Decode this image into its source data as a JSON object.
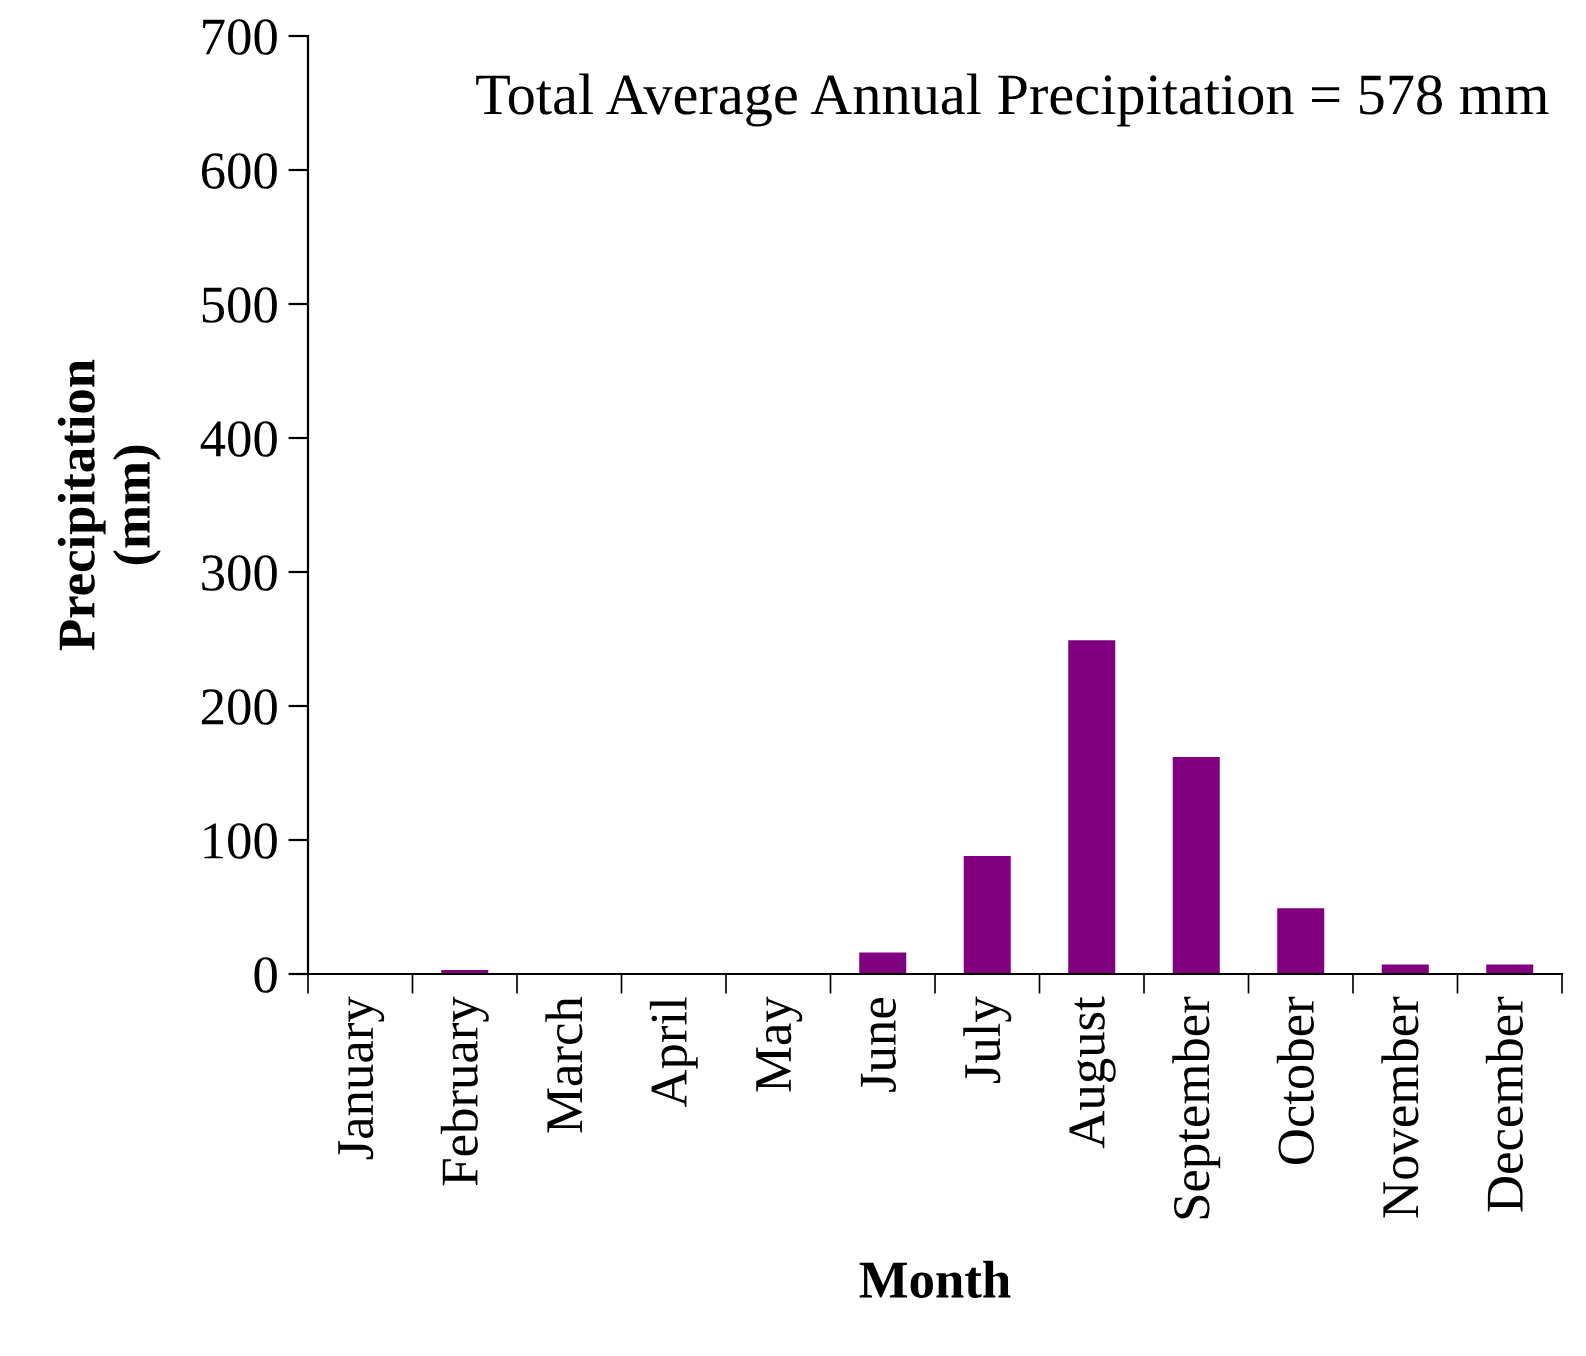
{
  "chart_data": {
    "type": "bar",
    "xlabel": "Month",
    "ylabel": "Precipitation\n(mm)",
    "annotations": [
      "Total Average Annual Precipitation = 578 mm"
    ],
    "categories": [
      "January",
      "February",
      "March",
      "April",
      "May",
      "June",
      "July",
      "August",
      "September",
      "October",
      "November",
      "December"
    ],
    "values": [
      0,
      3,
      0,
      0,
      0,
      16,
      88,
      249,
      162,
      49,
      7,
      7
    ],
    "color": "#800080",
    "ylim": [
      0,
      700
    ],
    "yticks": [
      0,
      100,
      200,
      300,
      400,
      500,
      600,
      700
    ],
    "grid": false,
    "legend": false
  }
}
